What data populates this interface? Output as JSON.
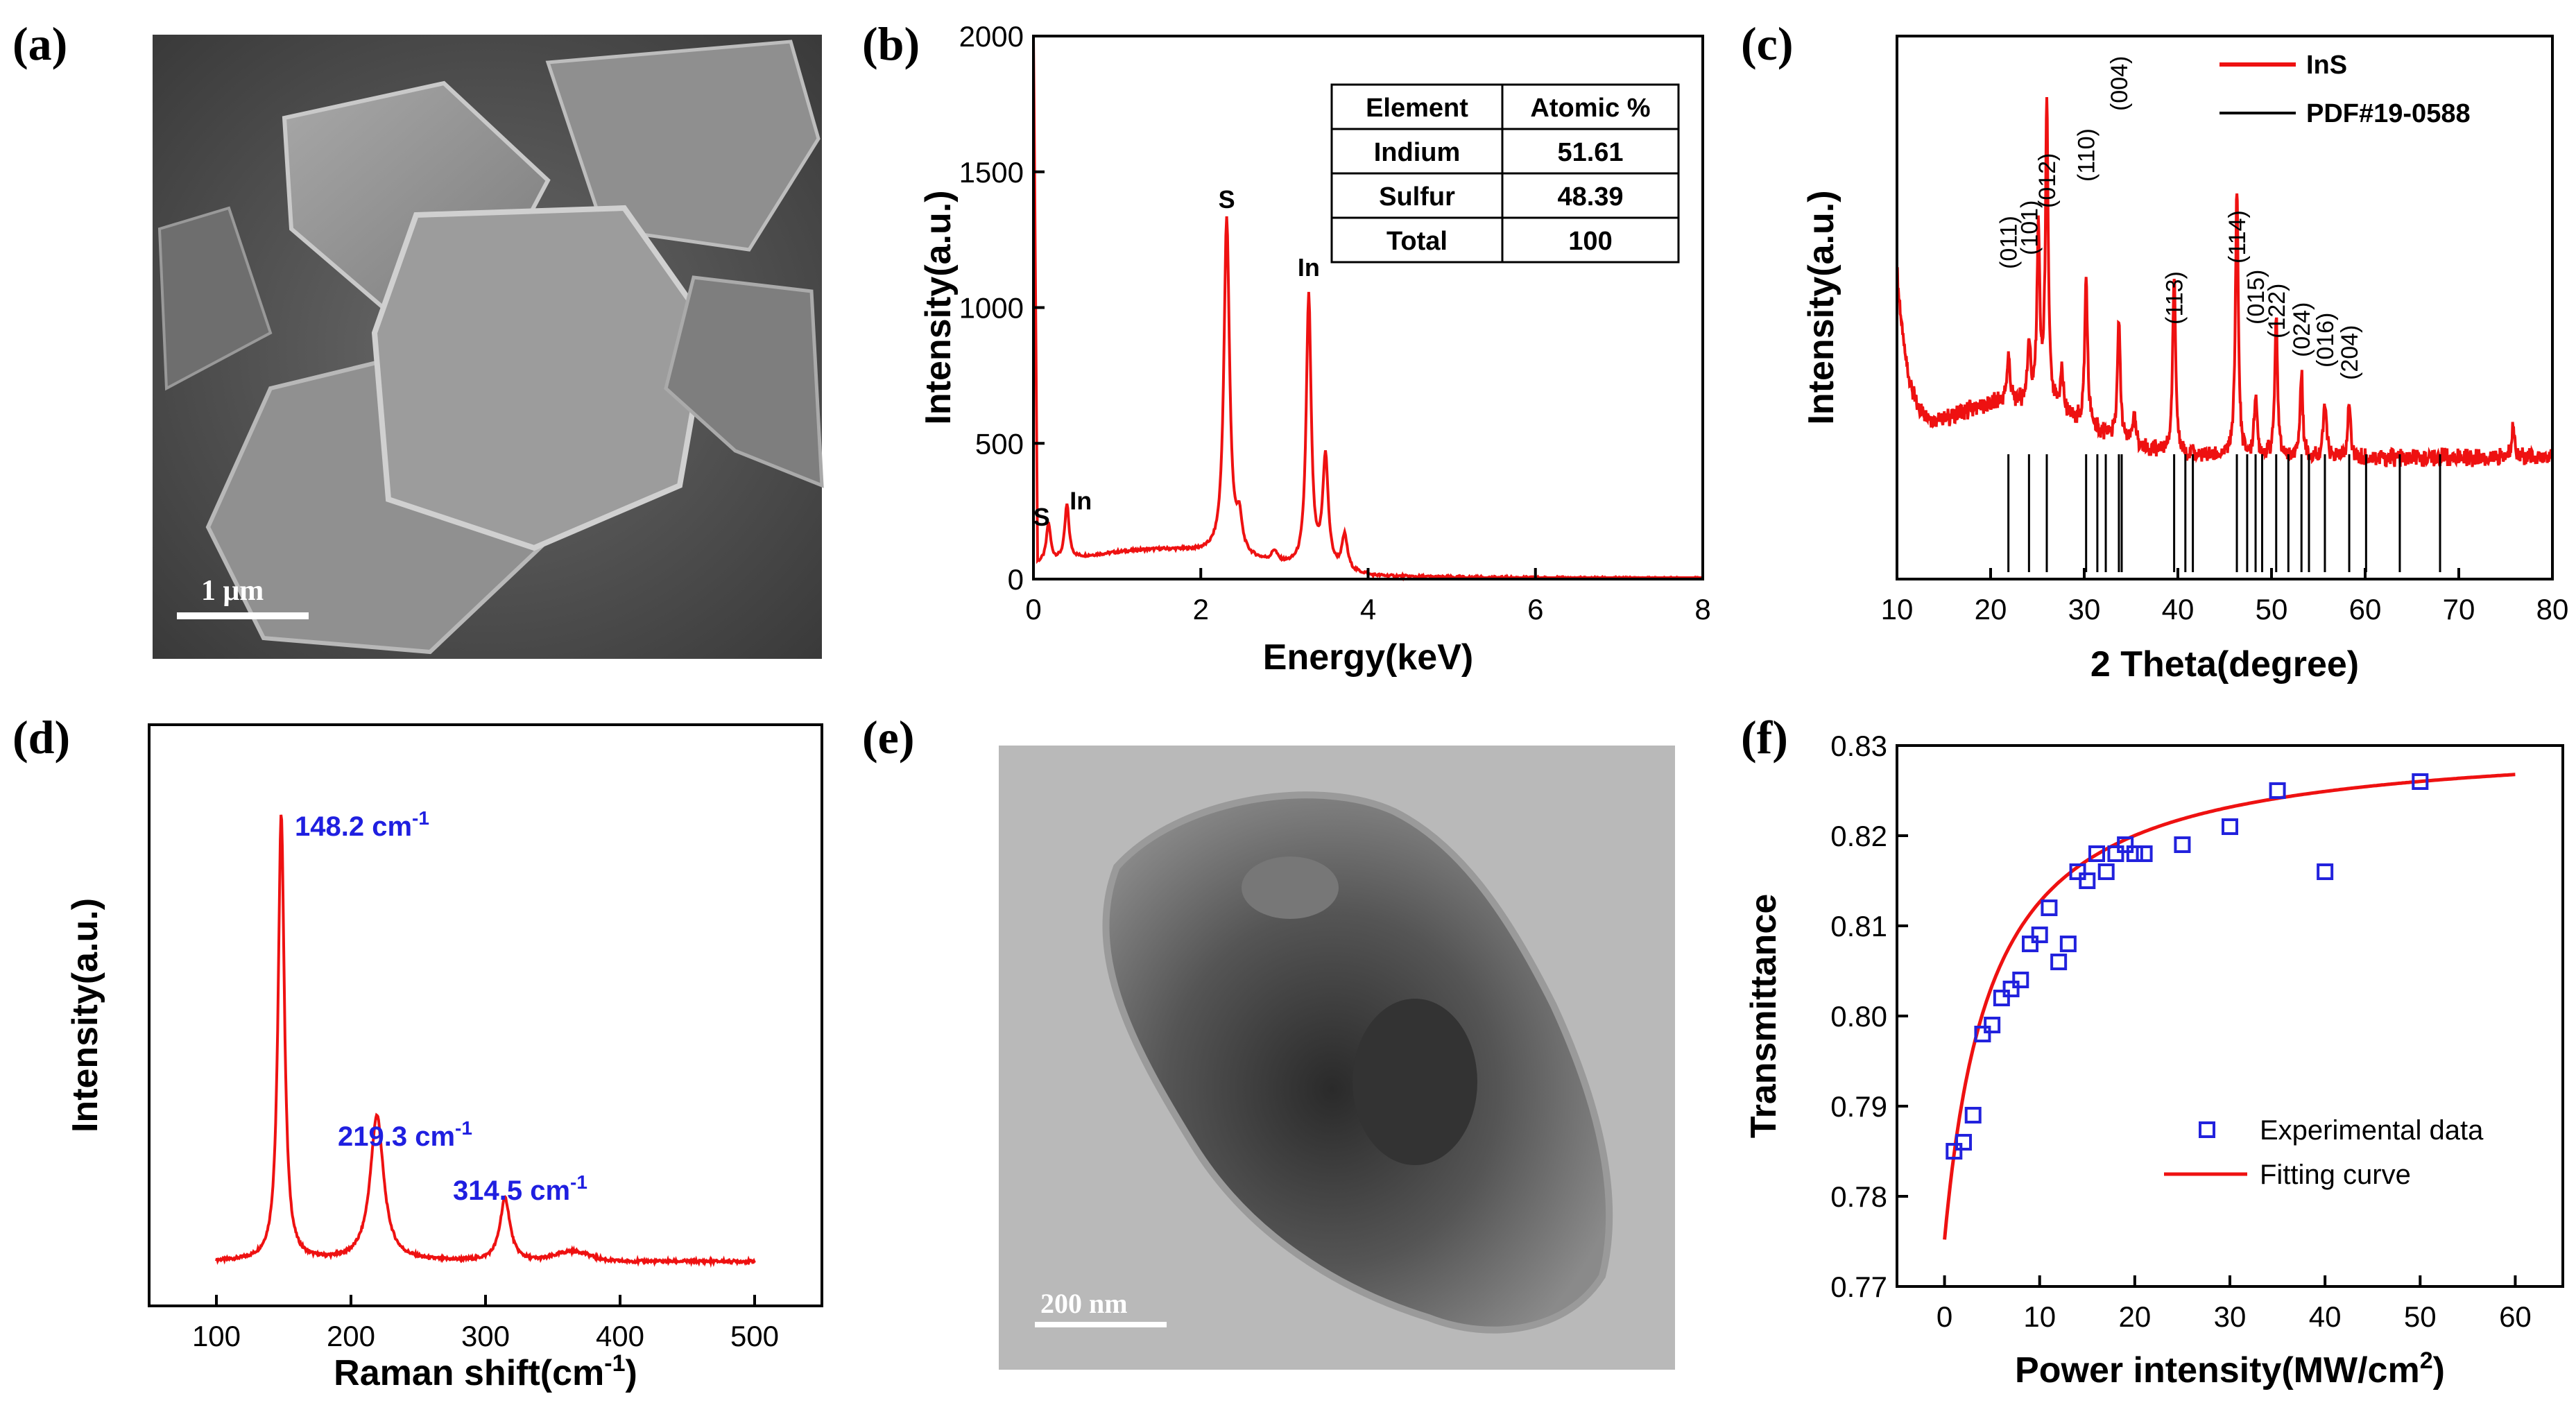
{
  "panels": {
    "a": {
      "label": "(a)",
      "scalebar": "1 μm"
    },
    "b": {
      "label": "(b)"
    },
    "c": {
      "label": "(c)"
    },
    "d": {
      "label": "(d)"
    },
    "e": {
      "label": "(e)",
      "scalebar": "200 nm"
    },
    "f": {
      "label": "(f)"
    }
  },
  "eds_table": {
    "headers": [
      "Element",
      "Atomic %"
    ],
    "rows": [
      [
        "Indium",
        "51.61"
      ],
      [
        "Sulfur",
        "48.39"
      ],
      [
        "Total",
        "100"
      ]
    ]
  },
  "chart_data": [
    {
      "id": "b",
      "type": "line",
      "xlabel": "Energy(keV)",
      "ylabel": "Intensity(a.u.)",
      "xlim": [
        0,
        8
      ],
      "ylim": [
        0,
        2000
      ],
      "xticks": [
        0,
        2,
        4,
        6,
        8
      ],
      "yticks": [
        0,
        500,
        1000,
        1500,
        2000
      ],
      "color": "#ee1111",
      "peaks": [
        {
          "x": 0.18,
          "y": 140,
          "label": "S"
        },
        {
          "x": 0.4,
          "y": 200,
          "label": "In"
        },
        {
          "x": 2.31,
          "y": 1310,
          "label": "S"
        },
        {
          "x": 3.29,
          "y": 1060,
          "label": "In"
        }
      ]
    },
    {
      "id": "c",
      "type": "line",
      "xlabel": "2 Theta(degree)",
      "ylabel": "Intensity(a.u.)",
      "xlim": [
        10,
        80
      ],
      "xticks": [
        10,
        20,
        30,
        40,
        50,
        60,
        70,
        80
      ],
      "legend": [
        {
          "name": "InS",
          "color": "#ee1111"
        },
        {
          "name": "PDF#19-0588",
          "color": "#000000"
        }
      ],
      "legend_position": "top-right",
      "peaks": [
        {
          "x": 21.9,
          "label": "(011)"
        },
        {
          "x": 24.1,
          "label": "(101)"
        },
        {
          "x": 26.0,
          "label": "(012)"
        },
        {
          "x": 30.2,
          "label": "(110)"
        },
        {
          "x": 33.7,
          "label": "(004)"
        },
        {
          "x": 39.6,
          "label": "(113)"
        },
        {
          "x": 46.3,
          "label": "(114)"
        },
        {
          "x": 48.3,
          "label": "(015)"
        },
        {
          "x": 50.5,
          "label": "(122)"
        },
        {
          "x": 53.2,
          "label": "(024)"
        },
        {
          "x": 55.7,
          "label": "(016)"
        },
        {
          "x": 58.3,
          "label": "(204)"
        }
      ],
      "reference_lines": [
        21.9,
        24.1,
        26.0,
        30.2,
        31.4,
        32.3,
        33.7,
        34.0,
        39.6,
        40.8,
        41.6,
        46.3,
        47.4,
        48.3,
        49.0,
        50.5,
        51.8,
        53.2,
        54.0,
        55.7,
        58.3,
        60.1,
        63.7,
        68.0
      ]
    },
    {
      "id": "d",
      "type": "line",
      "xlabel": "Raman shift(cm",
      "xlabel_sup": "-1",
      "xlabel_end": ")",
      "ylabel": "Intensity(a.u.)",
      "xlim": [
        50,
        550
      ],
      "xticks": [
        100,
        200,
        300,
        400,
        500
      ],
      "color": "#ee1111",
      "peaks": [
        {
          "x": 148.2,
          "height": 0.92,
          "label": "148.2 cm",
          "sup": "-1"
        },
        {
          "x": 219.3,
          "height": 0.3,
          "label": "219.3 cm",
          "sup": "-1"
        },
        {
          "x": 314.5,
          "height": 0.13,
          "label": "314.5 cm",
          "sup": "-1"
        }
      ],
      "label_color": "#1f1fe0"
    },
    {
      "id": "f",
      "type": "scatter",
      "xlabel": "Power intensity(MW/cm",
      "xlabel_sup": "2",
      "xlabel_end": ")",
      "ylabel": "Transmittance",
      "xlim": [
        -5,
        65
      ],
      "ylim": [
        0.77,
        0.83
      ],
      "xticks": [
        0,
        10,
        20,
        30,
        40,
        50,
        60
      ],
      "yticks": [
        0.77,
        0.78,
        0.79,
        0.8,
        0.81,
        0.82,
        0.83
      ],
      "ytick_labels": [
        "0.77",
        "0.78",
        "0.79",
        "0.80",
        "0.81",
        "0.82",
        "0.83"
      ],
      "legend_position": "bottom-right",
      "series": [
        {
          "name": "Experimental data",
          "marker": "open-square",
          "color": "#2222dd",
          "points": [
            [
              1,
              0.785
            ],
            [
              2,
              0.786
            ],
            [
              3,
              0.789
            ],
            [
              4,
              0.798
            ],
            [
              5,
              0.799
            ],
            [
              6,
              0.802
            ],
            [
              7,
              0.803
            ],
            [
              8,
              0.804
            ],
            [
              9,
              0.808
            ],
            [
              10,
              0.809
            ],
            [
              11,
              0.812
            ],
            [
              12,
              0.806
            ],
            [
              13,
              0.808
            ],
            [
              14,
              0.816
            ],
            [
              15,
              0.815
            ],
            [
              16,
              0.818
            ],
            [
              17,
              0.816
            ],
            [
              18,
              0.818
            ],
            [
              19,
              0.819
            ],
            [
              20,
              0.818
            ],
            [
              21,
              0.818
            ],
            [
              25,
              0.819
            ],
            [
              30,
              0.821
            ],
            [
              35,
              0.825
            ],
            [
              40,
              0.816
            ],
            [
              50,
              0.826
            ]
          ]
        },
        {
          "name": "Fitting curve",
          "type": "line",
          "color": "#ee1111",
          "model": {
            "x_start": 0,
            "x_end": 60,
            "y0": 0.7752,
            "amp": 0.0558,
            "half": 4.9
          }
        }
      ]
    }
  ]
}
